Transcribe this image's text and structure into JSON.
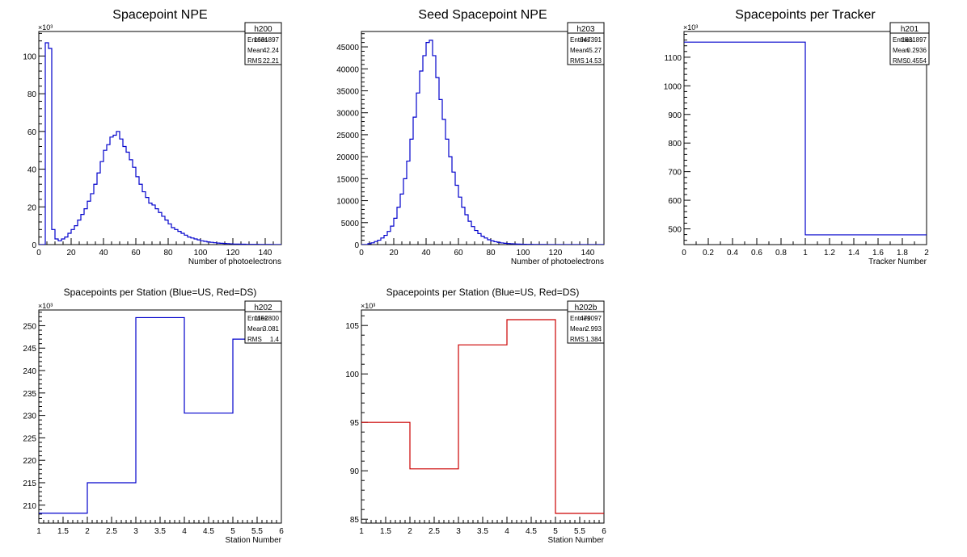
{
  "colors": {
    "blue": "#0000cc",
    "red": "#cc0000",
    "axis": "#000000",
    "stats_bg": "#ffffff"
  },
  "chart_data": [
    {
      "id": "h200",
      "type": "histogram",
      "title": "Spacepoint NPE",
      "xlabel": "Number of photoelectrons",
      "ylabel": "",
      "xlim": [
        0,
        150
      ],
      "ylim": [
        0,
        113
      ],
      "y_exponent_label": "×10³",
      "x_ticks": [
        0,
        20,
        40,
        60,
        80,
        100,
        120,
        140
      ],
      "x_tick_labels": [
        "0",
        "20",
        "40",
        "60",
        "80",
        "100",
        "120",
        "140"
      ],
      "y_ticks": [
        0,
        20,
        40,
        60,
        80,
        100
      ],
      "y_tick_labels": [
        "0",
        "20",
        "40",
        "60",
        "80",
        "100"
      ],
      "line_color": "#0000cc",
      "bin_width": 2,
      "bins_start": 0,
      "values": [
        0,
        0,
        107,
        104,
        8,
        3,
        2,
        3,
        4,
        6,
        8,
        10,
        13,
        16,
        19,
        23,
        27,
        32,
        38,
        44,
        50,
        53,
        57,
        58,
        60,
        56,
        52,
        49,
        45,
        41,
        36,
        32,
        28,
        25,
        22,
        21,
        19,
        17,
        15,
        13,
        11,
        9,
        8,
        7,
        6,
        5,
        4,
        3.5,
        3,
        2.5,
        2,
        1.7,
        1.4,
        1.2,
        1,
        0.8,
        0.7,
        0.6,
        0.5,
        0.4,
        0.3,
        0.3,
        0.2,
        0.2,
        0.1,
        0.1,
        0.1,
        0.1,
        0.05,
        0.05,
        0.05,
        0.05,
        0.03,
        0.03,
        0.02
      ],
      "stats": {
        "name": "h200",
        "rows": [
          [
            "Entries",
            "1631897"
          ],
          [
            "Mean",
            "42.24"
          ],
          [
            "RMS",
            "22.21"
          ]
        ]
      }
    },
    {
      "id": "h203",
      "type": "histogram",
      "title": "Seed Spacepoint NPE",
      "xlabel": "Number of photoelectrons",
      "ylabel": "",
      "xlim": [
        0,
        150
      ],
      "ylim": [
        0,
        48500
      ],
      "y_exponent_label": "",
      "x_ticks": [
        0,
        20,
        40,
        60,
        80,
        100,
        120,
        140
      ],
      "x_tick_labels": [
        "0",
        "20",
        "40",
        "60",
        "80",
        "100",
        "120",
        "140"
      ],
      "y_ticks": [
        0,
        5000,
        10000,
        15000,
        20000,
        25000,
        30000,
        35000,
        40000,
        45000
      ],
      "y_tick_labels": [
        "0",
        "5000",
        "10000",
        "15000",
        "20000",
        "25000",
        "30000",
        "35000",
        "40000",
        "45000"
      ],
      "line_color": "#0000cc",
      "bin_width": 2,
      "bins_start": 0,
      "values": [
        0,
        0,
        200,
        400,
        700,
        1000,
        1500,
        2100,
        3000,
        4200,
        6000,
        8500,
        11500,
        15000,
        19000,
        24000,
        29000,
        34500,
        39500,
        43000,
        46000,
        46500,
        43000,
        38000,
        33000,
        28500,
        24000,
        20000,
        16500,
        13500,
        10800,
        8500,
        6800,
        5300,
        4100,
        3200,
        2500,
        1900,
        1500,
        1100,
        850,
        650,
        500,
        380,
        300,
        230,
        180,
        140,
        110,
        90,
        70,
        55,
        45,
        35,
        30,
        25,
        20,
        15,
        12,
        10,
        8,
        6,
        5,
        4,
        3,
        3,
        2,
        2,
        1,
        1,
        1,
        1,
        1,
        1,
        1
      ],
      "stats": {
        "name": "h203",
        "rows": [
          [
            "Entries",
            "947391"
          ],
          [
            "Mean",
            "45.27"
          ],
          [
            "RMS",
            "14.53"
          ]
        ]
      }
    },
    {
      "id": "h201",
      "type": "histogram",
      "title": "Spacepoints per Tracker",
      "xlabel": "Tracker Number",
      "ylabel": "",
      "xlim": [
        0,
        2
      ],
      "ylim": [
        445,
        1190
      ],
      "y_exponent_label": "×10³",
      "x_ticks": [
        0,
        0.2,
        0.4,
        0.6,
        0.8,
        1,
        1.2,
        1.4,
        1.6,
        1.8,
        2
      ],
      "x_tick_labels": [
        "0",
        "0.2",
        "0.4",
        "0.6",
        "0.8",
        "1",
        "1.2",
        "1.4",
        "1.6",
        "1.8",
        "2"
      ],
      "y_ticks": [
        500,
        600,
        700,
        800,
        900,
        1000,
        1100
      ],
      "y_tick_labels": [
        "500",
        "600",
        "700",
        "800",
        "900",
        "1000",
        "1100"
      ],
      "line_color": "#0000cc",
      "bin_edges": [
        0,
        1,
        2
      ],
      "values": [
        1152.8,
        479.1
      ],
      "stats": {
        "name": "h201",
        "rows": [
          [
            "Entries",
            "1631897"
          ],
          [
            "Mean",
            "0.2936"
          ],
          [
            "RMS",
            "0.4554"
          ]
        ]
      }
    },
    {
      "id": "h202",
      "type": "histogram",
      "title": "Spacepoints per Station (Blue=US, Red=DS)",
      "xlabel": "Station Number",
      "ylabel": "",
      "xlim": [
        1,
        6
      ],
      "ylim": [
        206,
        253.5
      ],
      "y_exponent_label": "×10³",
      "x_ticks": [
        1,
        1.5,
        2,
        2.5,
        3,
        3.5,
        4,
        4.5,
        5,
        5.5,
        6
      ],
      "x_tick_labels": [
        "1",
        "1.5",
        "2",
        "2.5",
        "3",
        "3.5",
        "4",
        "4.5",
        "5",
        "5.5",
        "6"
      ],
      "y_ticks": [
        210,
        215,
        220,
        225,
        230,
        235,
        240,
        245,
        250
      ],
      "y_tick_labels": [
        "210",
        "215",
        "220",
        "225",
        "230",
        "235",
        "240",
        "245",
        "250"
      ],
      "line_color": "#0000cc",
      "bin_edges": [
        1,
        2,
        3,
        4,
        5,
        6
      ],
      "values": [
        208.2,
        215.0,
        251.8,
        230.5,
        247.0
      ],
      "stats": {
        "name": "h202",
        "rows": [
          [
            "Entries",
            "1152800"
          ],
          [
            "Mean",
            "3.081"
          ],
          [
            "RMS",
            "1.4"
          ]
        ]
      }
    },
    {
      "id": "h202b",
      "type": "histogram",
      "title": "Spacepoints per Station (Blue=US, Red=DS)",
      "xlabel": "Station Number",
      "ylabel": "",
      "xlim": [
        1,
        6
      ],
      "ylim": [
        84.6,
        106.6
      ],
      "y_exponent_label": "×10³",
      "x_ticks": [
        1,
        1.5,
        2,
        2.5,
        3,
        3.5,
        4,
        4.5,
        5,
        5.5,
        6
      ],
      "x_tick_labels": [
        "1",
        "1.5",
        "2",
        "2.5",
        "3",
        "3.5",
        "4",
        "4.5",
        "5",
        "5.5",
        "6"
      ],
      "y_ticks": [
        85,
        90,
        95,
        100,
        105
      ],
      "y_tick_labels": [
        "85",
        "90",
        "95",
        "100",
        "105"
      ],
      "line_color": "#cc0000",
      "bin_edges": [
        1,
        2,
        3,
        4,
        5,
        6
      ],
      "values": [
        95.0,
        90.2,
        103.0,
        105.6,
        85.6
      ],
      "stats": {
        "name": "h202b",
        "rows": [
          [
            "Entries",
            "479097"
          ],
          [
            "Mean",
            "2.993"
          ],
          [
            "RMS",
            "1.384"
          ]
        ]
      }
    }
  ]
}
